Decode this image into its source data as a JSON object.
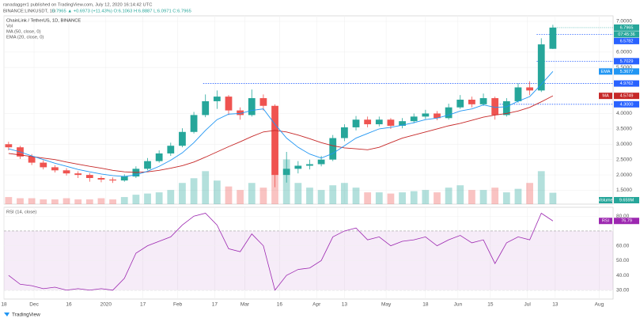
{
  "chart_data": {
    "type": "candlestick",
    "header": {
      "author": "ranadagger1 published on TradingView.com, July 12, 2020 16:14:42 UTC",
      "symbol": "BINANCE:LINKUSDT, 1D",
      "quote": "6.7965 ▲ +0.6973 (+11.43%) O:6.1063 H:6.8887 L:6.0971 C:6.7965"
    },
    "title": "ChainLink / TetherUS, 1D, BINANCE",
    "countdown": "07:45:36",
    "footer": "TradingView",
    "up_color": "#26a69a",
    "down_color": "#ef5350",
    "level_color": "#2962ff",
    "x": [
      19,
      24,
      29,
      34,
      39,
      44,
      49,
      54,
      59,
      64,
      69,
      74,
      79,
      84,
      89,
      94,
      99,
      104,
      109,
      114,
      119,
      124,
      129,
      134,
      139,
      144,
      149,
      154,
      159,
      164,
      169,
      174,
      179,
      184,
      189,
      194,
      199,
      204,
      209,
      214,
      219,
      224,
      229,
      234,
      239,
      244,
      249,
      254
    ],
    "open": [
      3.0,
      2.9,
      2.6,
      2.4,
      2.25,
      2.15,
      2.05,
      2.0,
      1.9,
      1.85,
      1.82,
      1.95,
      2.2,
      2.45,
      2.7,
      2.95,
      3.4,
      3.95,
      4.4,
      4.55,
      4.1,
      3.95,
      4.5,
      4.25,
      2.0,
      2.2,
      2.3,
      2.35,
      2.5,
      3.2,
      3.55,
      3.8,
      3.65,
      3.8,
      3.6,
      3.75,
      3.9,
      4.0,
      3.85,
      4.2,
      4.45,
      4.3,
      4.5,
      3.95,
      4.4,
      4.85,
      4.75,
      6.1063
    ],
    "high": [
      3.08,
      2.95,
      2.68,
      2.48,
      2.32,
      2.22,
      2.12,
      2.06,
      1.96,
      1.92,
      2.02,
      2.28,
      2.55,
      2.8,
      3.05,
      3.52,
      4.05,
      4.62,
      4.75,
      4.6,
      4.2,
      4.78,
      4.62,
      4.3,
      2.75,
      2.45,
      2.5,
      2.62,
      3.3,
      3.65,
      3.92,
      3.9,
      3.9,
      3.85,
      3.85,
      4.0,
      4.12,
      4.08,
      4.32,
      4.6,
      4.55,
      4.65,
      4.55,
      4.5,
      4.98,
      5.05,
      6.45,
      6.8887
    ],
    "low": [
      2.8,
      2.52,
      2.32,
      2.18,
      2.08,
      1.98,
      1.9,
      1.78,
      1.76,
      1.74,
      1.78,
      1.9,
      2.15,
      2.4,
      2.62,
      2.9,
      3.35,
      3.88,
      4.15,
      3.95,
      3.8,
      3.9,
      4.1,
      1.6,
      1.75,
      2.05,
      2.18,
      2.28,
      2.45,
      3.1,
      3.45,
      3.55,
      3.58,
      3.5,
      3.52,
      3.68,
      3.82,
      3.78,
      3.8,
      4.15,
      4.2,
      4.25,
      3.8,
      3.9,
      4.35,
      4.6,
      4.7,
      6.0971
    ],
    "close": [
      2.9,
      2.6,
      2.4,
      2.25,
      2.15,
      2.05,
      2.0,
      1.9,
      1.85,
      1.82,
      1.95,
      2.2,
      2.45,
      2.7,
      2.95,
      3.4,
      3.95,
      4.4,
      4.55,
      4.1,
      3.95,
      4.5,
      4.25,
      2.0,
      2.2,
      2.3,
      2.35,
      2.5,
      3.2,
      3.55,
      3.8,
      3.65,
      3.8,
      3.6,
      3.75,
      3.9,
      4.0,
      3.85,
      4.2,
      4.45,
      4.3,
      4.5,
      3.95,
      4.4,
      4.85,
      4.75,
      6.25,
      6.7965
    ],
    "series": [
      {
        "name": "MA (50, close, 0)",
        "short": "MA",
        "color": "#c62828",
        "values": [
          2.7,
          2.65,
          2.6,
          2.55,
          2.5,
          2.42,
          2.35,
          2.28,
          2.22,
          2.15,
          2.1,
          2.08,
          2.1,
          2.15,
          2.22,
          2.3,
          2.42,
          2.58,
          2.75,
          2.92,
          3.08,
          3.25,
          3.4,
          3.45,
          3.4,
          3.3,
          3.18,
          3.05,
          2.95,
          2.88,
          2.85,
          2.82,
          2.9,
          3.05,
          3.2,
          3.3,
          3.4,
          3.5,
          3.6,
          3.68,
          3.78,
          3.88,
          3.95,
          4.0,
          4.08,
          4.2,
          4.38,
          4.5749
        ]
      },
      {
        "name": "EMA (20, close, 0)",
        "short": "EMA",
        "color": "#2196f3",
        "values": [
          2.85,
          2.75,
          2.62,
          2.5,
          2.38,
          2.28,
          2.18,
          2.1,
          2.03,
          1.98,
          1.95,
          2.0,
          2.12,
          2.28,
          2.48,
          2.72,
          3.05,
          3.45,
          3.8,
          3.98,
          4.0,
          4.1,
          4.15,
          3.65,
          3.2,
          2.9,
          2.68,
          2.55,
          2.7,
          2.95,
          3.2,
          3.35,
          3.5,
          3.55,
          3.62,
          3.7,
          3.8,
          3.85,
          3.95,
          4.08,
          4.15,
          4.28,
          4.2,
          4.22,
          4.4,
          4.55,
          4.95,
          5.3677
        ]
      }
    ],
    "volume": {
      "name": "Volume",
      "short": "Vol",
      "ylim": [
        0,
        160
      ],
      "last_label": "9.659M",
      "values": [
        6,
        5,
        5,
        4,
        4,
        5,
        4,
        4,
        5,
        4,
        6,
        8,
        9,
        10,
        12,
        18,
        22,
        28,
        20,
        15,
        12,
        18,
        14,
        25,
        38,
        18,
        14,
        12,
        16,
        18,
        14,
        10,
        10,
        9,
        10,
        11,
        12,
        10,
        14,
        16,
        12,
        12,
        14,
        10,
        13,
        18,
        28,
        9.659
      ]
    },
    "levels": [
      {
        "value": 6.5782,
        "label": "6.5782",
        "x_start": 247
      },
      {
        "value": 5.7029,
        "label": "5.7029",
        "x_start": 247
      },
      {
        "value": 4.9762,
        "label": "4.9762",
        "x_start": 103
      },
      {
        "value": 4.3,
        "label": "4.3000",
        "x_start": 230
      }
    ],
    "xlim": [
      17,
      280
    ],
    "xticks": [
      {
        "value": 17,
        "label": "18"
      },
      {
        "value": 30,
        "label": "Dec"
      },
      {
        "value": 45,
        "label": "16"
      },
      {
        "value": 61,
        "label": "2020"
      },
      {
        "value": 77,
        "label": "17"
      },
      {
        "value": 92,
        "label": "Feb"
      },
      {
        "value": 108,
        "label": "17"
      },
      {
        "value": 121,
        "label": "Mar"
      },
      {
        "value": 136,
        "label": "16"
      },
      {
        "value": 152,
        "label": "Apr"
      },
      {
        "value": 164,
        "label": "13"
      },
      {
        "value": 182,
        "label": "May"
      },
      {
        "value": 199,
        "label": "18"
      },
      {
        "value": 213,
        "label": "Jun"
      },
      {
        "value": 227,
        "label": "15"
      },
      {
        "value": 243,
        "label": "Jul"
      },
      {
        "value": 255,
        "label": "13"
      },
      {
        "value": 274,
        "label": "Aug"
      }
    ],
    "ylim": [
      1.05,
      7.18
    ],
    "yticks": [
      {
        "value": 7,
        "label": "7.0000"
      },
      {
        "value": 6,
        "label": "6.0000"
      },
      {
        "value": 5.5,
        "label": "5.5000"
      },
      {
        "value": 4,
        "label": "4.0000"
      },
      {
        "value": 3.5,
        "label": "3.5000"
      },
      {
        "value": 3,
        "label": "3.0000"
      },
      {
        "value": 2.5,
        "label": "2.5000"
      },
      {
        "value": 2,
        "label": "2.0000"
      },
      {
        "value": 1.5,
        "label": "1.5000"
      }
    ],
    "grid": true,
    "rsi": {
      "title": "RSI (14, close)",
      "short": "RSI",
      "color": "#9c27b0",
      "values": [
        40,
        34,
        33,
        31,
        32,
        30,
        31,
        30,
        31,
        30,
        38,
        55,
        60,
        63,
        66,
        74,
        80,
        82,
        74,
        58,
        56,
        68,
        60,
        30,
        40,
        44,
        45,
        50,
        66,
        70,
        72,
        64,
        66,
        60,
        63,
        64,
        66,
        60,
        64,
        67,
        62,
        64,
        48,
        62,
        66,
        64,
        82,
        76.79
      ],
      "ylim": [
        24,
        86
      ],
      "band": [
        30,
        70
      ],
      "yticks": [
        {
          "value": 80,
          "label": "80.00"
        },
        {
          "value": 60,
          "label": "60.00"
        },
        {
          "value": 50,
          "label": "50.00"
        },
        {
          "value": 40,
          "label": "40.00"
        },
        {
          "value": 30,
          "label": "30.00"
        }
      ]
    }
  }
}
